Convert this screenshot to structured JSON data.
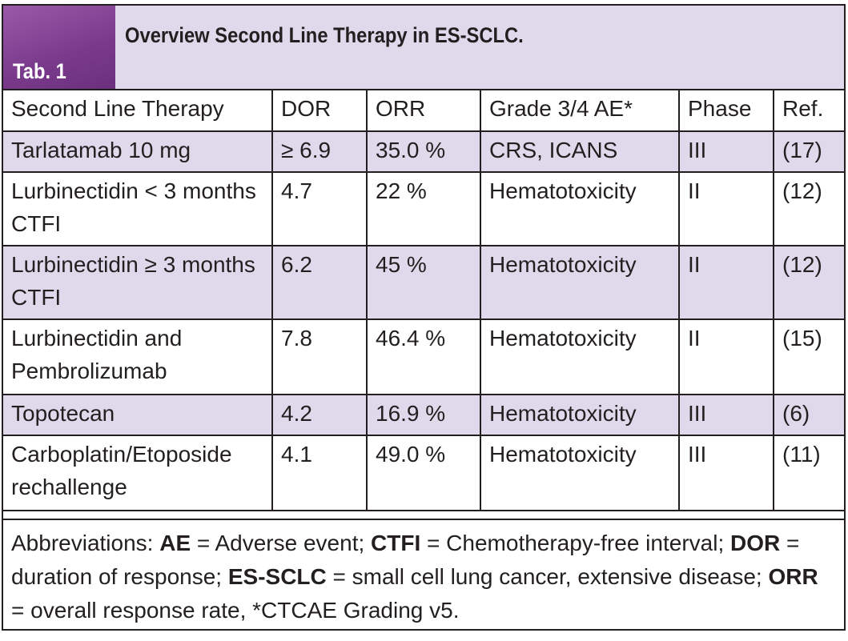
{
  "table_label": "Tab. 1",
  "table_title": "Overview Second Line Therapy in ES-SCLC.",
  "columns": [
    "Second Line Therapy",
    "DOR",
    "ORR",
    "Grade 3/4 AE*",
    "Phase",
    "Ref."
  ],
  "rows": [
    {
      "therapy": "Tarlatamab 10 mg",
      "dor": "≥ 6.9",
      "orr": "35.0 %",
      "ae": "CRS, ICANS",
      "phase": "III",
      "ref": "(17)"
    },
    {
      "therapy": "Lurbinectidin < 3 months CTFI",
      "dor": "4.7",
      "orr": "22 %",
      "ae": "Hematotoxicity",
      "phase": "II",
      "ref": "(12)"
    },
    {
      "therapy": "Lurbinectidin ≥ 3 months CTFI",
      "dor": "6.2",
      "orr": "45 %",
      "ae": "Hematotoxicity",
      "phase": "II",
      "ref": "(12)"
    },
    {
      "therapy": "Lurbinectidin and Pembrolizumab",
      "dor": "7.8",
      "orr": "46.4 %",
      "ae": "Hematotoxicity",
      "phase": "II",
      "ref": "(15)"
    },
    {
      "therapy": "Topotecan",
      "dor": "4.2",
      "orr": "16.9 %",
      "ae": "Hematotoxicity",
      "phase": "III",
      "ref": "(6)"
    },
    {
      "therapy": "Carboplatin/Etoposide rechallenge",
      "dor": "4.1",
      "orr": "49.0 %",
      "ae": "Hematotoxicity",
      "phase": "III",
      "ref": "(11)"
    }
  ],
  "footnote": {
    "prefix": "Abbreviations: ",
    "items": [
      {
        "abbr": "AE",
        "def": " = Adverse event; "
      },
      {
        "abbr": "CTFI",
        "def": " = Chemotherapy-free interval; "
      },
      {
        "abbr": "DOR",
        "def": " = duration of response; "
      },
      {
        "abbr": "ES-SCLC",
        "def": " = small cell lung cancer, extensive disease; "
      },
      {
        "abbr": "ORR",
        "def": " = overall response rate, *CTCAE Grading v5."
      }
    ]
  },
  "colors": {
    "accent_purple": "#7a3a8c",
    "header_tint": "#e0d9eb",
    "border": "#231f20"
  }
}
